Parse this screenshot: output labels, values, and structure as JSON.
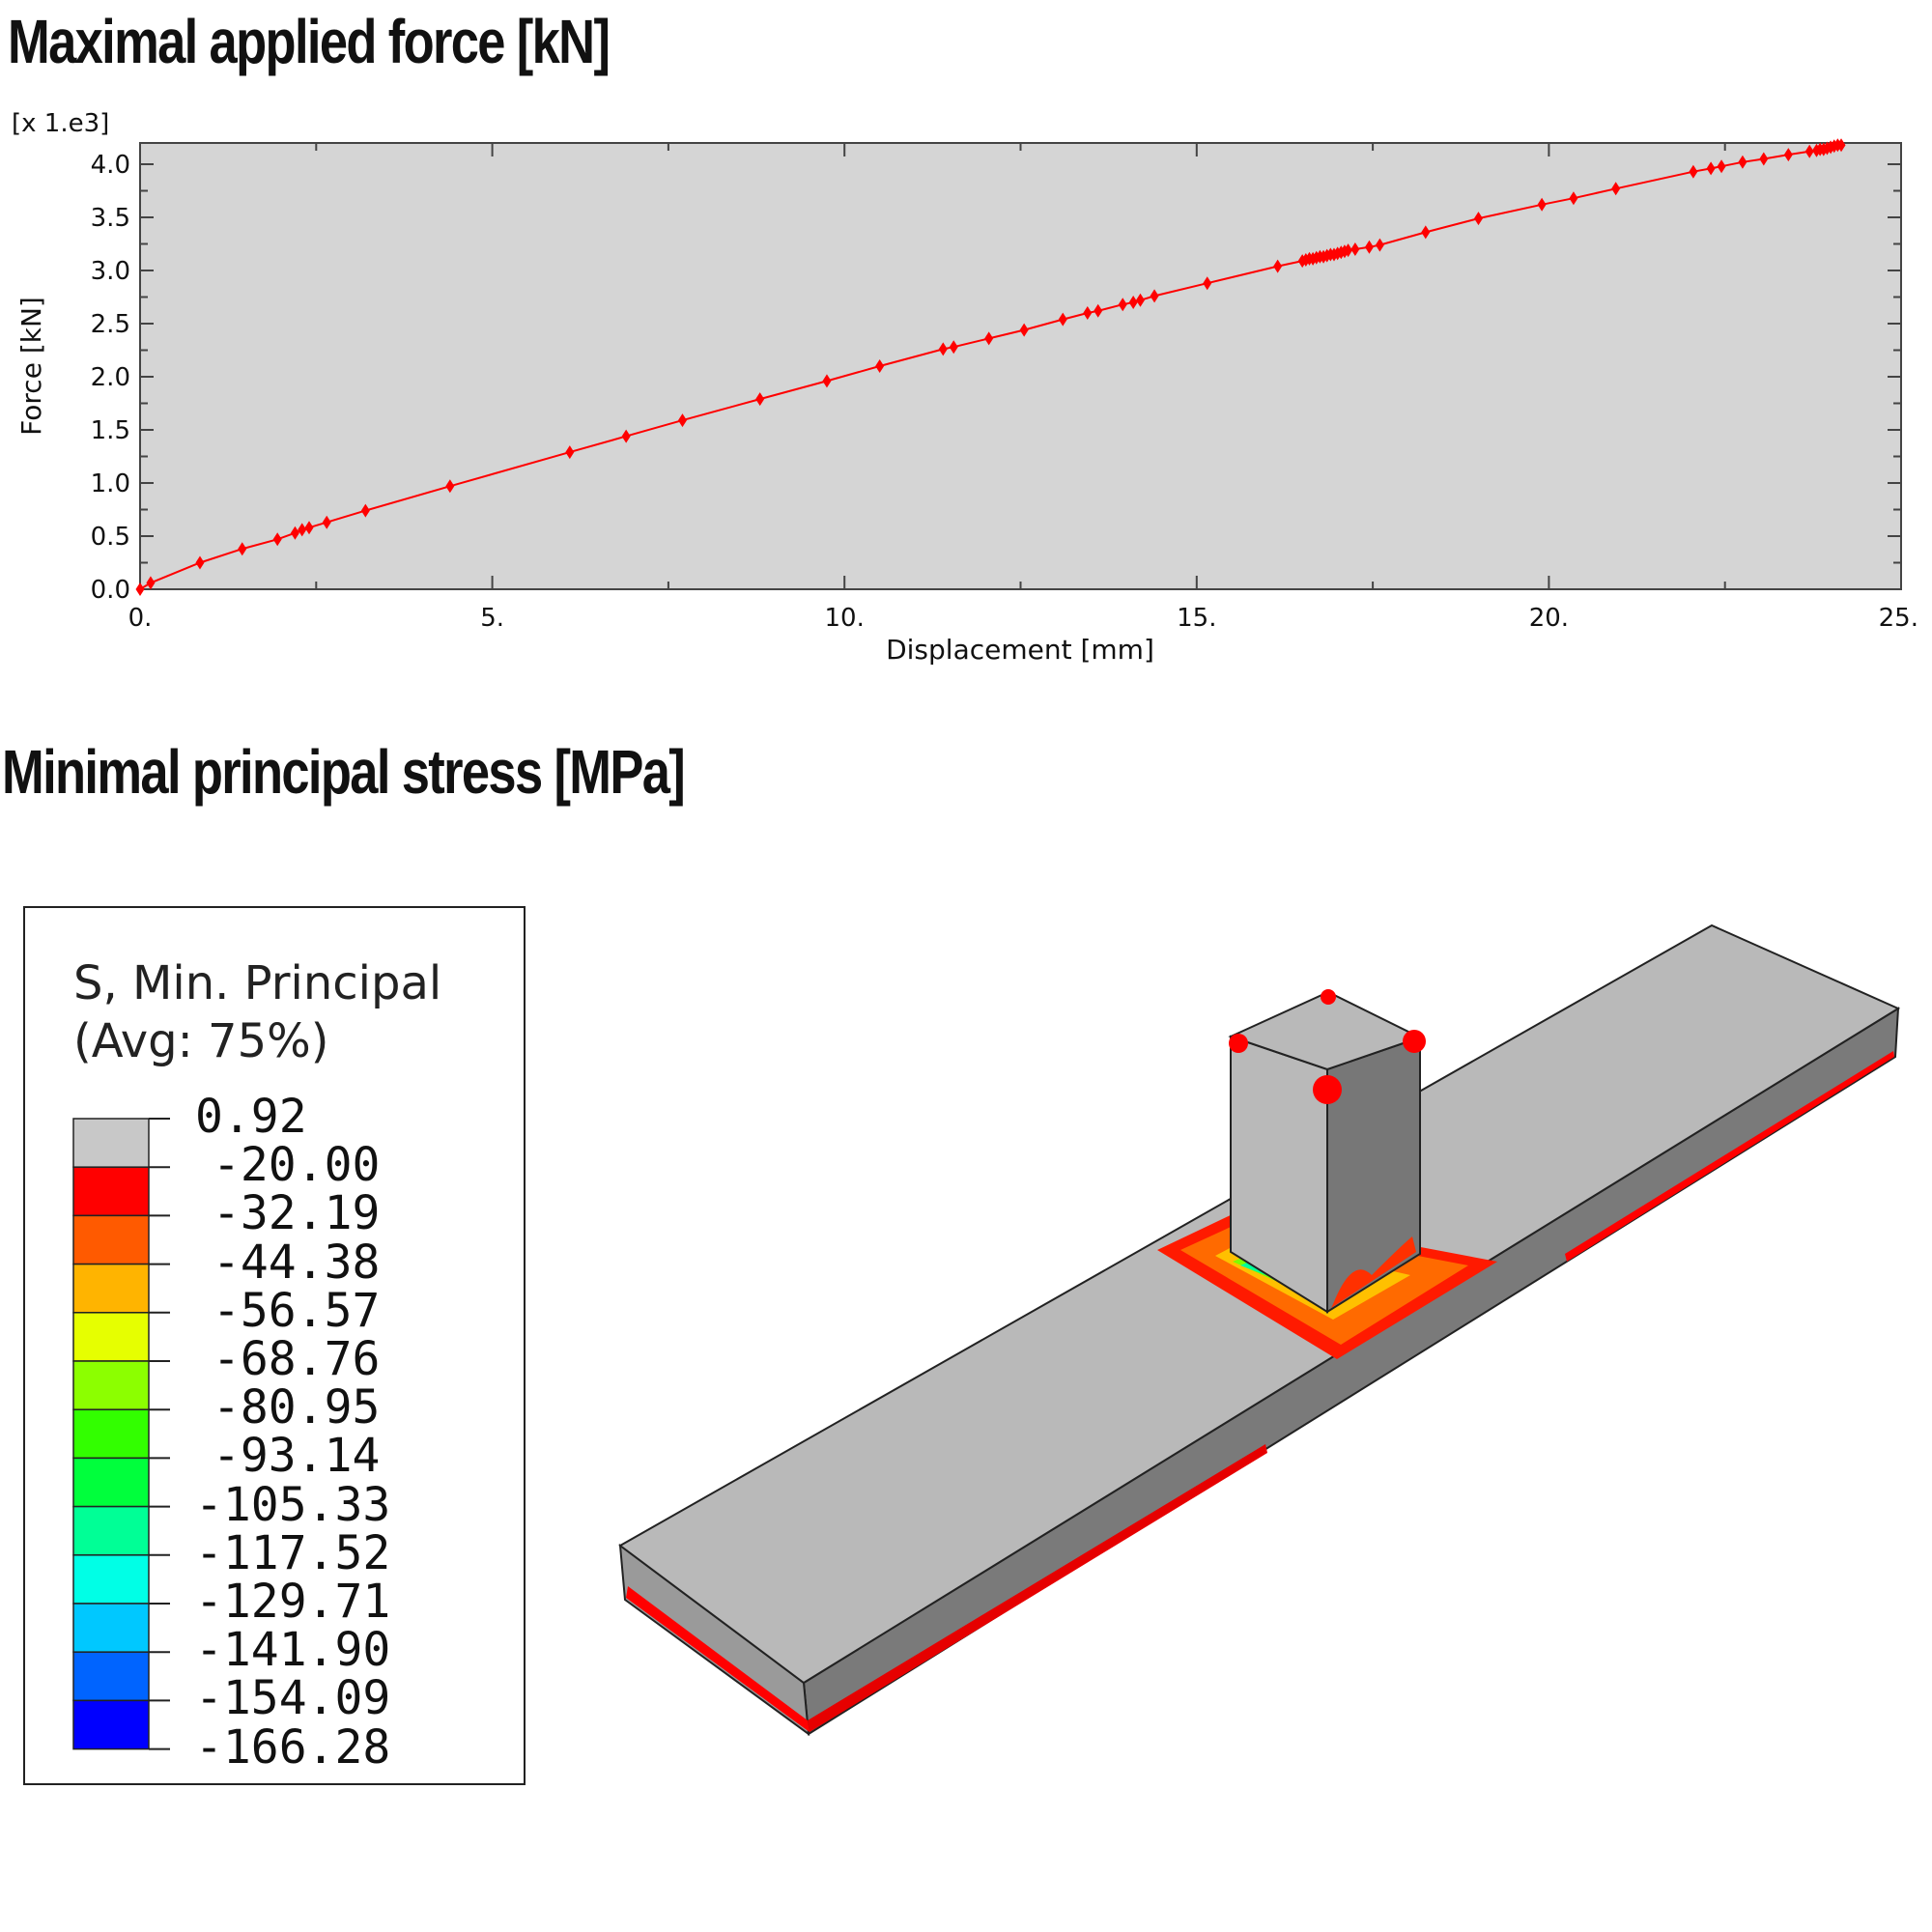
{
  "headings": {
    "force": "Maximal applied force [kN]",
    "stress": "Minimal principal stress [MPa]"
  },
  "chart_data": {
    "type": "line",
    "title": "Maximal applied force [kN]",
    "xlabel": "Displacement [mm]",
    "ylabel": "Force [kN]",
    "y_multiplier_label": "[x 1.e3]",
    "xlim": [
      0,
      25
    ],
    "ylim": [
      0,
      4.2
    ],
    "x_ticks": [
      "0.",
      "5.",
      "10.",
      "15.",
      "20.",
      "25."
    ],
    "y_ticks": [
      "0.0",
      "0.5",
      "1.0",
      "1.5",
      "2.0",
      "2.5",
      "3.0",
      "3.5",
      "4.0"
    ],
    "grid": false,
    "series": [
      {
        "color": "#ff0000",
        "marker": "diamond",
        "x": [
          0.0,
          0.15,
          0.85,
          1.45,
          1.95,
          2.2,
          2.3,
          2.4,
          2.65,
          3.2,
          4.4,
          6.1,
          6.9,
          7.7,
          8.8,
          9.75,
          10.5,
          11.4,
          11.55,
          12.05,
          12.55,
          13.1,
          13.45,
          13.6,
          13.95,
          14.1,
          14.2,
          14.4,
          15.15,
          16.15,
          16.5,
          16.55,
          16.6,
          16.65,
          16.7,
          16.75,
          16.8,
          16.85,
          16.9,
          16.95,
          17.0,
          17.05,
          17.1,
          17.15,
          17.25,
          17.45,
          17.6,
          18.25,
          19.0,
          19.9,
          20.35,
          20.95,
          22.05,
          22.3,
          22.45,
          22.75,
          23.05,
          23.4,
          23.7,
          23.8,
          23.85,
          23.9,
          23.95,
          24.0,
          24.05,
          24.1,
          24.15
        ],
        "y": [
          0.0,
          0.06,
          0.25,
          0.38,
          0.47,
          0.53,
          0.56,
          0.58,
          0.63,
          0.74,
          0.97,
          1.29,
          1.44,
          1.59,
          1.79,
          1.96,
          2.1,
          2.26,
          2.28,
          2.36,
          2.44,
          2.54,
          2.6,
          2.62,
          2.68,
          2.7,
          2.72,
          2.76,
          2.88,
          3.04,
          3.09,
          3.1,
          3.11,
          3.11,
          3.12,
          3.13,
          3.13,
          3.14,
          3.15,
          3.15,
          3.16,
          3.17,
          3.18,
          3.19,
          3.2,
          3.22,
          3.24,
          3.36,
          3.49,
          3.62,
          3.68,
          3.77,
          3.93,
          3.96,
          3.98,
          4.02,
          4.05,
          4.09,
          4.12,
          4.13,
          4.14,
          4.14,
          4.15,
          4.16,
          4.17,
          4.18,
          4.18
        ]
      }
    ]
  },
  "legend": {
    "title_line1": "S, Min. Principal",
    "title_line2": "(Avg: 75%)",
    "values": [
      "0.92",
      "-20.00",
      "-32.19",
      "-44.38",
      "-56.57",
      "-68.76",
      "-80.95",
      "-93.14",
      "-105.33",
      "-117.52",
      "-129.71",
      "-141.90",
      "-154.09",
      "-166.28"
    ],
    "colors": [
      "#c8c8c8",
      "#ff0000",
      "#ff5a00",
      "#ffb400",
      "#e6ff00",
      "#8cff00",
      "#32ff00",
      "#00ff3c",
      "#00ff96",
      "#00ffe6",
      "#00c8ff",
      "#0064ff",
      "#0000ff"
    ]
  }
}
